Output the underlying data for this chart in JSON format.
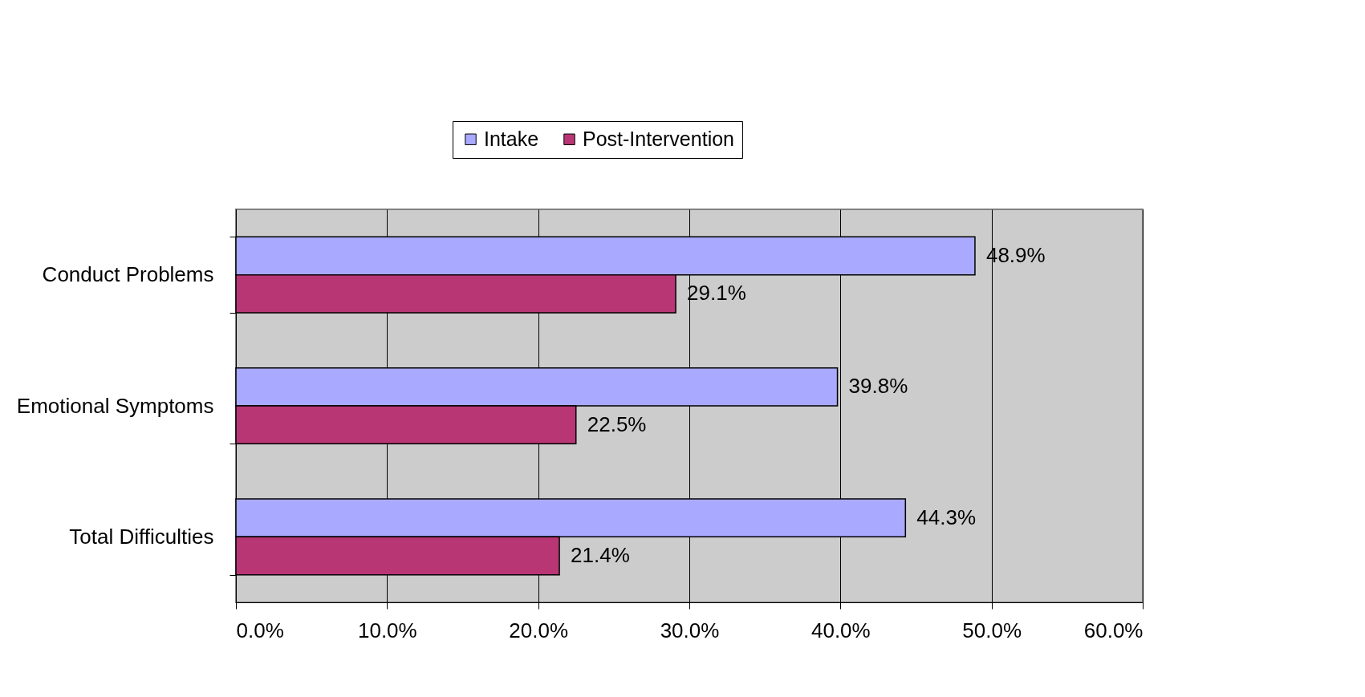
{
  "chart_data": {
    "type": "bar",
    "orientation": "horizontal",
    "categories": [
      "Conduct Problems",
      "Emotional Symptoms",
      "Total Difficulties"
    ],
    "series": [
      {
        "name": "Intake",
        "color": "#a9a9ff",
        "values": [
          48.9,
          39.8,
          44.3
        ],
        "value_labels": [
          "48.9%",
          "39.8%",
          "44.3%"
        ]
      },
      {
        "name": "Post-Intervention",
        "color": "#b83674",
        "values": [
          29.1,
          22.5,
          21.4
        ],
        "value_labels": [
          "29.1%",
          "22.5%",
          "21.4%"
        ]
      }
    ],
    "xlim": [
      0,
      60
    ],
    "xticks": [
      {
        "value": 0,
        "label": "0.0%"
      },
      {
        "value": 10,
        "label": "10.0%"
      },
      {
        "value": 20,
        "label": "20.0%"
      },
      {
        "value": 30,
        "label": "30.0%"
      },
      {
        "value": 40,
        "label": "40.0%"
      },
      {
        "value": 50,
        "label": "50.0%"
      },
      {
        "value": 60,
        "label": "60.0%"
      }
    ],
    "grid": "x",
    "legend": "top"
  }
}
